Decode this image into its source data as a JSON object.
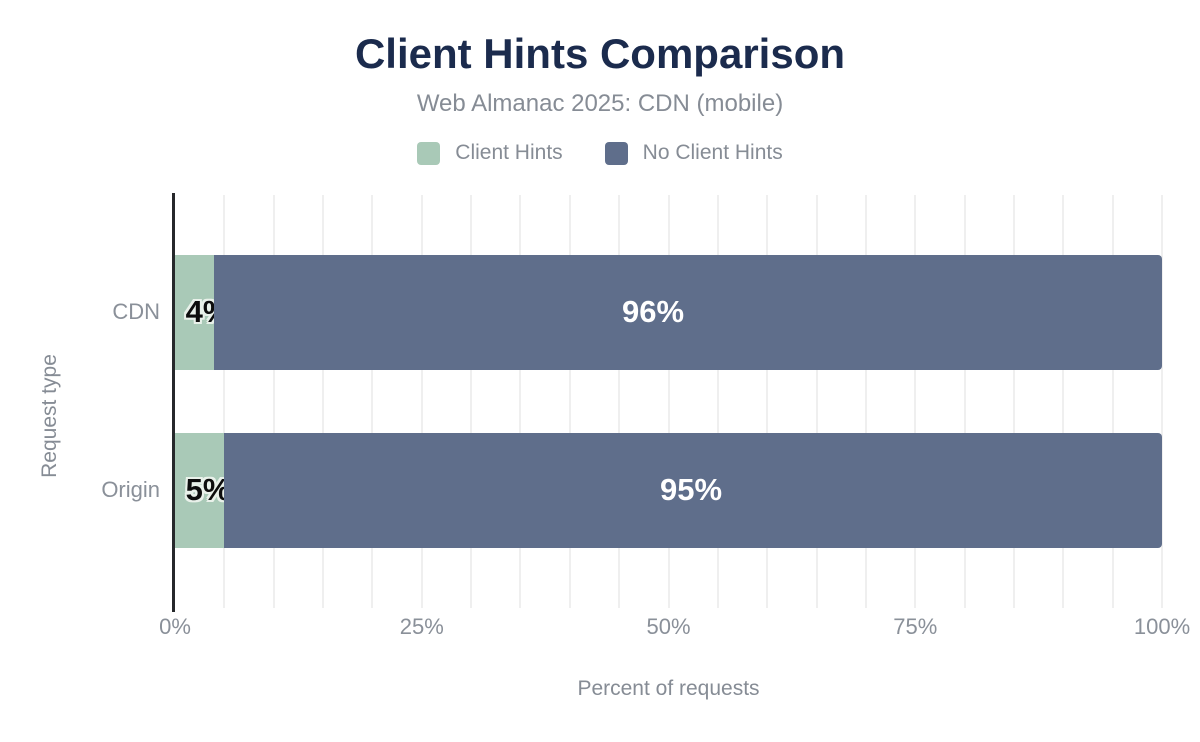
{
  "chart_data": {
    "type": "bar",
    "orientation": "horizontal",
    "stacked": true,
    "title": "Client Hints Comparison",
    "subtitle": "Web Almanac 2025: CDN (mobile)",
    "xlabel": "Percent of requests",
    "ylabel": "Request type",
    "categories": [
      "CDN",
      "Origin"
    ],
    "series": [
      {
        "name": "Client Hints",
        "color": "#a9c9b7",
        "values": [
          4,
          5
        ],
        "labels": [
          "4%",
          "5%"
        ],
        "label_style": "outlined"
      },
      {
        "name": "No Client Hints",
        "color": "#5f6e8b",
        "values": [
          96,
          95
        ],
        "labels": [
          "96%",
          "95%"
        ],
        "label_style": "white"
      }
    ],
    "xlim": [
      0,
      100
    ],
    "xticks": [
      {
        "pos": 0,
        "label": "0%"
      },
      {
        "pos": 25,
        "label": "25%"
      },
      {
        "pos": 50,
        "label": "50%"
      },
      {
        "pos": 75,
        "label": "75%"
      },
      {
        "pos": 100,
        "label": "100%"
      }
    ],
    "grid": {
      "minor_step": 5,
      "color": "#efefef",
      "visible": true
    },
    "legend_position": "top",
    "colors": {
      "title": "#1b2b4d",
      "muted_text": "#868c95",
      "axis_line": "#26282b",
      "background": "#ffffff"
    }
  }
}
